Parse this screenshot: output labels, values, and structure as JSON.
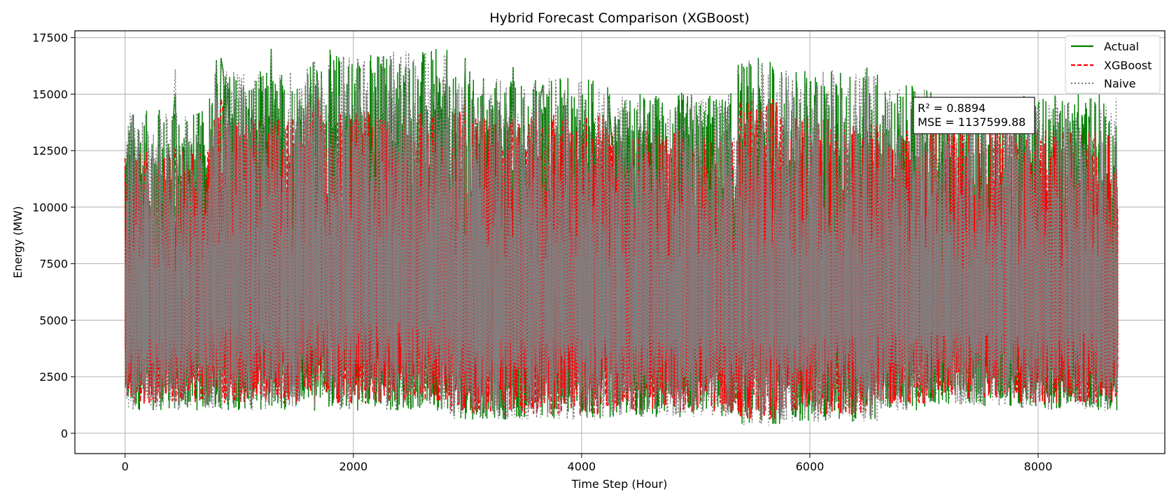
{
  "chart_data": {
    "type": "line",
    "title": "Hybrid Forecast Comparison (XGBoost)",
    "xlabel": "Time Step (Hour)",
    "ylabel": "Energy (MW)",
    "xlim": [
      -440,
      9110
    ],
    "ylim": [
      -900,
      17800
    ],
    "x_ticks": [
      0,
      2000,
      4000,
      6000,
      8000
    ],
    "x_tick_labels": [
      "0",
      "2000",
      "4000",
      "6000",
      "8000"
    ],
    "y_ticks": [
      0,
      2500,
      5000,
      7500,
      10000,
      12500,
      15000,
      17500
    ],
    "y_tick_labels": [
      "0",
      "2500",
      "5000",
      "7500",
      "10000",
      "12500",
      "15000",
      "17500"
    ],
    "grid": true,
    "legend_position": "top-right",
    "annotation": {
      "lines": [
        "R² = 0.8894",
        "MSE = 1137599.88"
      ],
      "metrics": {
        "r2": 0.8894,
        "mse": 1137599.88
      }
    },
    "x_step": 20,
    "x_start": 0,
    "series": [
      {
        "name": "Actual",
        "color": "#008000",
        "style": "solid",
        "values": [
          4200,
          2000,
          6500,
          12200,
          3000,
          6000,
          13400,
          8000,
          4000,
          12200,
          2500,
          10000,
          3500,
          6000,
          11000,
          14300,
          4000,
          6200,
          10500,
          12800,
          3200,
          13800,
          15000,
          7000,
          3500,
          11600,
          6000,
          13800,
          9000,
          12400,
          2500,
          10000,
          4500,
          12200,
          2500,
          9500,
          3200,
          11200,
          5000,
          12300,
          16500,
          9000,
          16600,
          16000,
          13800,
          15500,
          6000,
          12500,
          4000,
          11200,
          5000,
          15200,
          10000,
          3000,
          13400,
          6000,
          9400,
          13900,
          5000,
          13600,
          7000,
          12200,
          4000,
          11300,
          17000,
          9000,
          14000,
          5000,
          11400,
          3500,
          13400,
          6000,
          11800,
          3000,
          12800,
          4000,
          14000,
          6000,
          12800,
          3500,
          11800,
          2000,
          12900,
          1000,
          9600,
          3000,
          15800,
          5000,
          12300,
          2000,
          11600,
          3500,
          12700,
          2000,
          11000,
          2500,
          12900,
          4000,
          12800,
          2000,
          12100,
          5000,
          12600,
          3000,
          12400,
          2000,
          11400,
          4000,
          11900,
          3500,
          10800,
          6000,
          13900,
          2500,
          10500,
          4000,
          14900,
          3000,
          10000,
          2000,
          14800,
          6000,
          15200,
          3000,
          13200,
          2500,
          11000,
          2000,
          12000,
          3500,
          10600,
          2000,
          14500,
          5000,
          13100,
          4000,
          12500,
          2000,
          11700,
          5000,
          10600,
          2500,
          10900,
          3500,
          13700,
          5000,
          12300,
          3000,
          11600,
          16600,
          4000,
          16000,
          2000,
          13400,
          1000,
          12800,
          4000,
          15700,
          2500,
          11800,
          5000,
          14500,
          3000,
          14700,
          2000,
          12700,
          4000,
          14600,
          2000,
          11900,
          16200,
          3000,
          13400,
          2500,
          11900,
          4000,
          9700,
          2000,
          13200,
          4000,
          11800,
          2500,
          14900,
          15400,
          12800,
          4000,
          10800,
          2500,
          10400,
          6000,
          11700,
          5000,
          14500,
          9000,
          8000,
          6500,
          10000,
          3500,
          8800,
          4000,
          13200,
          6500,
          12100,
          3000,
          10800,
          5000,
          9800,
          2500,
          10800,
          4000,
          9500,
          12200,
          14900,
          13200,
          12300,
          5000,
          13900,
          4000,
          12800,
          3000,
          11600,
          4500,
          13400,
          2500,
          12400,
          3500,
          11600
        ],
        "ranges": [
          {
            "x0": 0,
            "x1": 740,
            "min": 1000,
            "max": 14300
          },
          {
            "x0": 740,
            "x1": 1540,
            "min": 1000,
            "max": 16100
          },
          {
            "x0": 1540,
            "x1": 1780,
            "min": 1500,
            "max": 16600
          },
          {
            "x0": 1780,
            "x1": 2840,
            "min": 1000,
            "max": 17000
          },
          {
            "x0": 2840,
            "x1": 4240,
            "min": 600,
            "max": 15800
          },
          {
            "x0": 4240,
            "x1": 5360,
            "min": 700,
            "max": 15100
          },
          {
            "x0": 5360,
            "x1": 5740,
            "min": 400,
            "max": 16600
          },
          {
            "x0": 5740,
            "x1": 6600,
            "min": 500,
            "max": 16200
          },
          {
            "x0": 6600,
            "x1": 7080,
            "min": 1000,
            "max": 15400
          },
          {
            "x0": 7080,
            "x1": 7840,
            "min": 1200,
            "max": 14700
          },
          {
            "x0": 7840,
            "x1": 8700,
            "min": 1000,
            "max": 15000
          }
        ]
      },
      {
        "name": "XGBoost",
        "color": "#ff0000",
        "style": "dashed",
        "values": [
          4000,
          2300,
          6000,
          10200,
          3300,
          5800,
          11000,
          7200,
          4200,
          10200,
          2800,
          9000,
          3700,
          5800,
          9800,
          12000,
          4200,
          6000,
          9500,
          11200,
          3500,
          12000,
          12600,
          6800,
          3700,
          10200,
          6000,
          12000,
          8500,
          11000,
          2800,
          9200,
          4600,
          11000,
          2800,
          8800,
          3500,
          10200,
          5000,
          11000,
          14300,
          8600,
          14800,
          14200,
          12000,
          13700,
          6000,
          11200,
          4200,
          10300,
          5000,
          13800,
          9200,
          3300,
          12000,
          6000,
          8800,
          12500,
          5000,
          12200,
          6800,
          11000,
          4200,
          10400,
          14100,
          8600,
          12500,
          5000,
          10600,
          3700,
          12000,
          6000,
          10800,
          3300,
          11600,
          4200,
          12400,
          6000,
          11600,
          3700,
          10800,
          2300,
          11500,
          1300,
          9000,
          3300,
          14300,
          5000,
          12600,
          2300,
          12600,
          3700,
          11400,
          2300,
          10200,
          2800,
          11500,
          4200,
          11400,
          2300,
          11000,
          5000,
          11200,
          3300,
          11100,
          2300,
          10500,
          4200,
          10800,
          3700,
          10000,
          6000,
          12300,
          2800,
          9700,
          4200,
          13000,
          3300,
          9300,
          2300,
          12500,
          6000,
          13400,
          3300,
          11800,
          2800,
          10200,
          2300,
          10800,
          3700,
          9800,
          2300,
          12500,
          5000,
          11700,
          4200,
          11200,
          2300,
          10700,
          5000,
          9800,
          2800,
          10000,
          3700,
          12000,
          5000,
          11000,
          3300,
          10600,
          14800,
          4200,
          14200,
          2300,
          12000,
          1300,
          11500,
          4200,
          13700,
          2800,
          10800,
          5000,
          12800,
          3300,
          12900,
          2300,
          11300,
          4200,
          12800,
          2300,
          10900,
          13900,
          3300,
          12000,
          2800,
          10900,
          4200,
          9000,
          2300,
          13600,
          4200,
          10800,
          2800,
          13000,
          13500,
          11400,
          4200,
          10000,
          2800,
          9600,
          6000,
          10700,
          5000,
          13000,
          8600,
          7600,
          6500,
          9500,
          3700,
          8300,
          4200,
          11800,
          6500,
          10700,
          3300,
          9800,
          5000,
          9100,
          2800,
          10700,
          4200,
          9000,
          11000,
          13200,
          11800,
          11000,
          5000,
          12300,
          4200,
          11400,
          3300,
          10400,
          4600,
          12000,
          2800,
          11100,
          3700,
          10500
        ],
        "ranges": [
          {
            "x0": 0,
            "x1": 740,
            "min": 1300,
            "max": 12500
          },
          {
            "x0": 740,
            "x1": 1540,
            "min": 1300,
            "max": 14000
          },
          {
            "x0": 1540,
            "x1": 1780,
            "min": 1800,
            "max": 14800
          },
          {
            "x0": 1780,
            "x1": 2840,
            "min": 1300,
            "max": 14300
          },
          {
            "x0": 2840,
            "x1": 4240,
            "min": 800,
            "max": 14300
          },
          {
            "x0": 4240,
            "x1": 5360,
            "min": 900,
            "max": 13400
          },
          {
            "x0": 5360,
            "x1": 5740,
            "min": 600,
            "max": 14800
          },
          {
            "x0": 5740,
            "x1": 6600,
            "min": 800,
            "max": 14000
          },
          {
            "x0": 6600,
            "x1": 7080,
            "min": 1300,
            "max": 13500
          },
          {
            "x0": 7080,
            "x1": 7840,
            "min": 1500,
            "max": 14100
          },
          {
            "x0": 7840,
            "x1": 8700,
            "min": 1300,
            "max": 13400
          }
        ]
      },
      {
        "name": "Naive",
        "color": "#808080",
        "style": "dotted",
        "values": [
          7500,
          2200,
          6400,
          12100,
          3100,
          5900,
          13300,
          7900,
          4100,
          12100,
          2600,
          9900,
          3600,
          5900,
          10900,
          14200,
          4100,
          6100,
          10400,
          12700,
          3300,
          13700,
          16100,
          6900,
          3600,
          11500,
          6000,
          13700,
          8900,
          12300,
          2600,
          9900,
          4500,
          12100,
          2600,
          9400,
          3300,
          11100,
          5000,
          12200,
          16400,
          8900,
          16500,
          15900,
          13700,
          15400,
          6000,
          12400,
          4100,
          11100,
          5000,
          15100,
          9900,
          3100,
          13300,
          6000,
          9300,
          13800,
          5000,
          13500,
          6900,
          12100,
          4100,
          11200,
          16900,
          8900,
          13900,
          5000,
          11300,
          3600,
          13300,
          6000,
          11700,
          3100,
          12700,
          4100,
          13900,
          6000,
          12700,
          3600,
          11700,
          2100,
          12800,
          1100,
          9500,
          3100,
          15700,
          5000,
          12200,
          2100,
          11500,
          3600,
          12600,
          2100,
          10900,
          2600,
          12800,
          4100,
          12700,
          2100,
          12000,
          5000,
          12500,
          3100,
          12300,
          2100,
          11300,
          4100,
          11800,
          3600,
          10700,
          6000,
          13800,
          2600,
          10400,
          4100,
          14800,
          3100,
          9900,
          2100,
          14700,
          6000,
          15100,
          3100,
          13100,
          2600,
          10900,
          2100,
          11900,
          3600,
          10500,
          2100,
          14400,
          5000,
          13000,
          4100,
          12400,
          2100,
          11600,
          5000,
          10500,
          2600,
          10800,
          3600,
          13600,
          5000,
          12200,
          3100,
          11500,
          16500,
          4100,
          15900,
          2100,
          13300,
          1100,
          12700,
          4100,
          15600,
          2600,
          11700,
          5000,
          14400,
          3100,
          14600,
          2100,
          12600,
          4100,
          14500,
          2100,
          11800,
          16100,
          3100,
          13300,
          2600,
          11800,
          4100,
          9600,
          2100,
          13100,
          4100,
          11700,
          2600,
          14800,
          15300,
          12700,
          4100,
          10700,
          2600,
          10300,
          6000,
          11600,
          5000,
          14400,
          8900,
          7900,
          6500,
          9900,
          3600,
          8700,
          4100,
          13100,
          6500,
          12000,
          3100,
          10700,
          5000,
          9700,
          2600,
          10700,
          4100,
          9400,
          12100,
          14800,
          13100,
          12200,
          5000,
          13800,
          4100,
          12700,
          3100,
          11500,
          4500,
          13300,
          2600,
          12300,
          3600,
          11500
        ],
        "ranges": [
          {
            "x0": 0,
            "x1": 740,
            "min": 1000,
            "max": 14200
          },
          {
            "x0": 740,
            "x1": 1540,
            "min": 1000,
            "max": 16000
          },
          {
            "x0": 1540,
            "x1": 1780,
            "min": 1500,
            "max": 16500
          },
          {
            "x0": 1780,
            "x1": 2840,
            "min": 1000,
            "max": 16900
          },
          {
            "x0": 2840,
            "x1": 4240,
            "min": 600,
            "max": 15700
          },
          {
            "x0": 4240,
            "x1": 5360,
            "min": 700,
            "max": 15000
          },
          {
            "x0": 5360,
            "x1": 5740,
            "min": 300,
            "max": 16500
          },
          {
            "x0": 5740,
            "x1": 6600,
            "min": 500,
            "max": 16100
          },
          {
            "x0": 6600,
            "x1": 7080,
            "min": 1000,
            "max": 15300
          },
          {
            "x0": 7080,
            "x1": 7840,
            "min": 1200,
            "max": 14600
          },
          {
            "x0": 7840,
            "x1": 8700,
            "min": 1000,
            "max": 14900
          }
        ]
      }
    ]
  }
}
